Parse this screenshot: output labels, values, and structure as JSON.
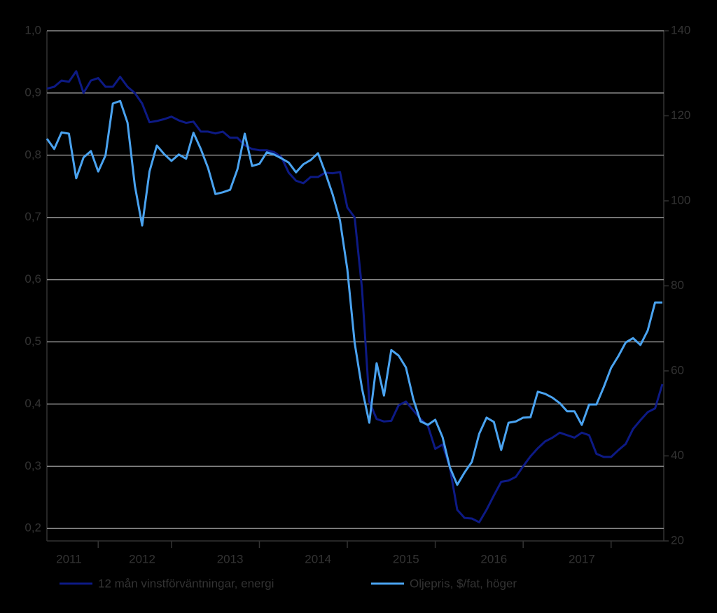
{
  "chart_data": {
    "type": "line",
    "categories": [
      null,
      null,
      null,
      "2011",
      null,
      null,
      null,
      null,
      null,
      null,
      null,
      null,
      null,
      "2012",
      null,
      null,
      null,
      null,
      null,
      null,
      null,
      null,
      null,
      null,
      null,
      "2013",
      null,
      null,
      null,
      null,
      null,
      null,
      null,
      null,
      null,
      null,
      null,
      "2014",
      null,
      null,
      null,
      null,
      null,
      null,
      null,
      null,
      null,
      null,
      null,
      "2015",
      null,
      null,
      null,
      null,
      null,
      null,
      null,
      null,
      null,
      null,
      null,
      "2016",
      null,
      null,
      null,
      null,
      null,
      null,
      null,
      null,
      null,
      null,
      null,
      "2017",
      null,
      null,
      null,
      null,
      null,
      null,
      null,
      null,
      null,
      null,
      null
    ],
    "series": [
      {
        "name": "12 mån vinstförväntningar, energi",
        "color": "#0d1a85",
        "values": [
          0.907,
          0.91,
          0.92,
          0.918,
          0.935,
          0.9,
          0.92,
          0.924,
          0.91,
          0.91,
          0.926,
          0.91,
          0.9,
          0.883,
          0.853,
          0.855,
          0.858,
          0.862,
          0.856,
          0.852,
          0.854,
          0.838,
          0.838,
          0.835,
          0.838,
          0.828,
          0.828,
          0.816,
          0.81,
          0.808,
          0.808,
          0.805,
          0.797,
          0.772,
          0.759,
          0.755,
          0.765,
          0.765,
          0.772,
          0.771,
          0.773,
          0.716,
          0.7,
          0.586,
          0.404,
          0.376,
          0.372,
          0.373,
          0.398,
          0.404,
          0.39,
          0.376,
          0.365,
          0.328,
          0.335,
          0.298,
          0.23,
          0.217,
          0.216,
          0.21,
          0.23,
          0.253,
          0.275,
          0.277,
          0.283,
          0.3,
          0.316,
          0.329,
          0.34,
          0.346,
          0.354,
          0.35,
          0.346,
          0.354,
          0.35,
          0.32,
          0.315,
          0.315,
          0.326,
          0.336,
          0.36,
          0.374,
          0.387,
          0.393,
          0.432
        ]
      },
      {
        "name": "Oljepris, $/fat, höger",
        "color": "#4aa3f0",
        "axis": "y2",
        "values": [
          114.6,
          112.2,
          116.1,
          115.8,
          105.3,
          110.2,
          111.7,
          106.9,
          110.7,
          122.9,
          123.5,
          118.4,
          103.6,
          94.2,
          106.9,
          113,
          111,
          109.4,
          110.9,
          109.9,
          116,
          112.2,
          107.7,
          101.6,
          102,
          102.6,
          107.4,
          115.8,
          108.2,
          108.7,
          111.4,
          110.9,
          110,
          109,
          106.7,
          108.6,
          109.6,
          111.2,
          106.6,
          101.5,
          95.4,
          83.9,
          66.6,
          55.9,
          47.8,
          61.8,
          54.2,
          64.9,
          63.6,
          60.8,
          53.4,
          48.1,
          47.3,
          48.5,
          44.4,
          37.3,
          33.2,
          36.1,
          38.6,
          45.2,
          49,
          48,
          41.4,
          47.8,
          48.1,
          49,
          49.1,
          55.1,
          54.6,
          53.7,
          52.4,
          50.5,
          50.5,
          47.3,
          52.1,
          52.1,
          56.2,
          60.7,
          63.5,
          66.7,
          67.7,
          66.1,
          69.5,
          76.1,
          76.1
        ]
      }
    ],
    "ylim": [
      0.18,
      1.0
    ],
    "yticks": [
      {
        "value": 0.2,
        "label": "0,2"
      },
      {
        "value": 0.3,
        "label": "0,3"
      },
      {
        "value": 0.4,
        "label": "0,4"
      },
      {
        "value": 0.5,
        "label": "0,5"
      },
      {
        "value": 0.6,
        "label": "0,6"
      },
      {
        "value": 0.7,
        "label": "0,7"
      },
      {
        "value": 0.8,
        "label": "0,8"
      },
      {
        "value": 0.9,
        "label": "0,9"
      },
      {
        "value": 1.0,
        "label": "1,0"
      }
    ],
    "y2lim": [
      20,
      140
    ],
    "y2ticks": [
      20,
      40,
      60,
      80,
      100,
      120,
      140
    ],
    "grid": true
  }
}
